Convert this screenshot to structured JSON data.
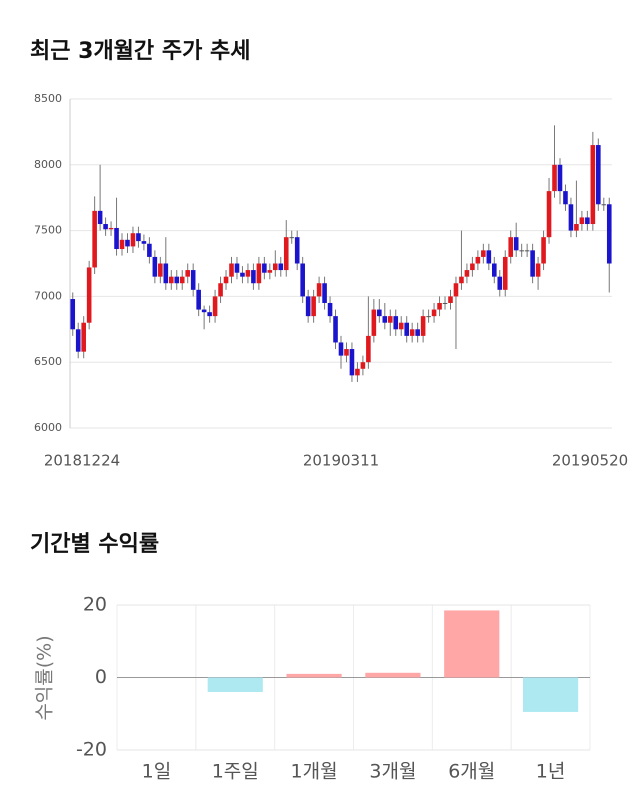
{
  "chart_data": [
    {
      "type": "candlestick",
      "title": "최근 3개월간 주가 추세",
      "categories": [
        "20181224",
        null,
        null,
        null,
        null,
        null,
        null,
        null,
        null,
        null,
        null,
        null,
        null,
        null,
        null,
        null,
        null,
        null,
        null,
        null,
        null,
        null,
        null,
        null,
        null,
        null,
        null,
        null,
        null,
        null,
        null,
        null,
        null,
        null,
        null,
        null,
        null,
        null,
        null,
        null,
        null,
        null,
        null,
        null,
        null,
        null,
        null,
        null,
        null,
        "20190311",
        null,
        null,
        null,
        null,
        null,
        null,
        null,
        null,
        null,
        null,
        null,
        null,
        null,
        null,
        null,
        null,
        null,
        null,
        null,
        null,
        null,
        null,
        null,
        null,
        null,
        null,
        null,
        null,
        null,
        null,
        null,
        null,
        null,
        null,
        null,
        null,
        null,
        null,
        null,
        null,
        null,
        null,
        null,
        null,
        null,
        null,
        null,
        null,
        "20190520"
      ],
      "open": [
        6980,
        6750,
        6580,
        6800,
        7220,
        7650,
        7550,
        7510,
        7520,
        7360,
        7430,
        7380,
        7480,
        7420,
        7400,
        7300,
        7150,
        7250,
        7100,
        7150,
        7100,
        7150,
        7200,
        7050,
        6900,
        6880,
        6850,
        7000,
        7100,
        7150,
        7250,
        7180,
        7150,
        7200,
        7100,
        7250,
        7180,
        7200,
        7250,
        7200,
        7450,
        7450,
        7250,
        7000,
        6850,
        7000,
        7100,
        6950,
        6850,
        6650,
        6550,
        6600,
        6400,
        6450,
        6500,
        6700,
        6900,
        6850,
        6800,
        6850,
        6750,
        6800,
        6700,
        6750,
        6700,
        6850,
        6850,
        6900,
        6950,
        6950,
        7000,
        7100,
        7150,
        7200,
        7250,
        7300,
        7350,
        7250,
        7150,
        7050,
        7300,
        7450,
        7350,
        7350,
        7350,
        7150,
        7250,
        7450,
        7800,
        8000,
        7800,
        7700,
        7500,
        7550,
        7600,
        7550,
        8150,
        7700,
        7700
      ],
      "high": [
        7030,
        6800,
        6850,
        7270,
        7760,
        8000,
        7600,
        7570,
        7750,
        7480,
        7480,
        7530,
        7530,
        7470,
        7450,
        7350,
        7300,
        7450,
        7200,
        7200,
        7200,
        7250,
        7250,
        7100,
        6930,
        6930,
        7050,
        7150,
        7200,
        7300,
        7300,
        7230,
        7250,
        7250,
        7300,
        7300,
        7250,
        7350,
        7300,
        7580,
        7500,
        7500,
        7300,
        7050,
        7050,
        7150,
        7150,
        7000,
        6900,
        6700,
        6650,
        6650,
        6500,
        6550,
        7000,
        6980,
        6980,
        6950,
        6900,
        6900,
        6850,
        6850,
        6800,
        6800,
        6900,
        6900,
        6950,
        7000,
        7000,
        7050,
        7150,
        7500,
        7250,
        7300,
        7350,
        7400,
        7400,
        7300,
        7200,
        7350,
        7500,
        7560,
        7400,
        7400,
        7400,
        7300,
        7500,
        7900,
        8300,
        8050,
        7850,
        7750,
        7880,
        7650,
        7650,
        8250,
        8200,
        7750,
        7750
      ],
      "low": [
        6700,
        6530,
        6530,
        6750,
        7170,
        7500,
        7460,
        7460,
        7310,
        7310,
        7330,
        7330,
        7370,
        7350,
        7250,
        7100,
        7100,
        7050,
        7050,
        7050,
        7050,
        7100,
        7000,
        6850,
        6750,
        6800,
        6800,
        6950,
        7050,
        7100,
        7130,
        7100,
        7100,
        7050,
        7050,
        7130,
        7130,
        7150,
        7150,
        7150,
        7400,
        7200,
        6950,
        6800,
        6800,
        6950,
        6900,
        6800,
        6600,
        6450,
        6500,
        6350,
        6350,
        6400,
        6450,
        6650,
        6800,
        6750,
        6700,
        6700,
        6700,
        6650,
        6650,
        6650,
        6650,
        6800,
        6800,
        6850,
        6900,
        6900,
        6600,
        7050,
        7100,
        7150,
        7200,
        7250,
        7200,
        7100,
        7000,
        7000,
        7250,
        7300,
        7300,
        7300,
        7100,
        7050,
        7200,
        7400,
        7750,
        7700,
        7650,
        7450,
        7450,
        7500,
        7500,
        7500,
        7650,
        7650,
        7030
      ],
      "close": [
        6750,
        6580,
        6800,
        7220,
        7650,
        7550,
        7510,
        7520,
        7360,
        7430,
        7380,
        7480,
        7420,
        7400,
        7300,
        7150,
        7250,
        7100,
        7150,
        7100,
        7150,
        7200,
        7050,
        6900,
        6880,
        6850,
        7000,
        7100,
        7150,
        7250,
        7180,
        7150,
        7200,
        7100,
        7250,
        7180,
        7200,
        7250,
        7200,
        7450,
        7450,
        7250,
        7000,
        6850,
        7000,
        7100,
        6950,
        6850,
        6650,
        6550,
        6600,
        6400,
        6450,
        6500,
        6700,
        6900,
        6850,
        6800,
        6850,
        6750,
        6800,
        6700,
        6750,
        6700,
        6850,
        6850,
        6900,
        6950,
        6950,
        7000,
        7100,
        7150,
        7200,
        7250,
        7300,
        7350,
        7250,
        7150,
        7050,
        7300,
        7450,
        7350,
        7350,
        7350,
        7150,
        7250,
        7450,
        7800,
        8000,
        7800,
        7700,
        7500,
        7550,
        7600,
        7550,
        8150,
        7700,
        7700,
        7250
      ],
      "up_color": "#e0191f",
      "down_color": "#1a14cc",
      "ylim": [
        6000,
        8500
      ],
      "yticks": [
        6000,
        6500,
        7000,
        7500,
        8000,
        8500
      ],
      "grid": true
    },
    {
      "type": "bar",
      "title": "기간별 수익률",
      "ylabel": "수익률(%)",
      "categories": [
        "1일",
        "1주일",
        "1개월",
        "3개월",
        "6개월",
        "1년"
      ],
      "values": [
        0,
        -4,
        1,
        1.3,
        18.5,
        -9.5
      ],
      "positive_color": "#ffa6a6",
      "negative_color": "#aee9f1",
      "ylim": [
        -20,
        20
      ],
      "yticks": [
        -20,
        0,
        20
      ],
      "grid": true
    }
  ]
}
